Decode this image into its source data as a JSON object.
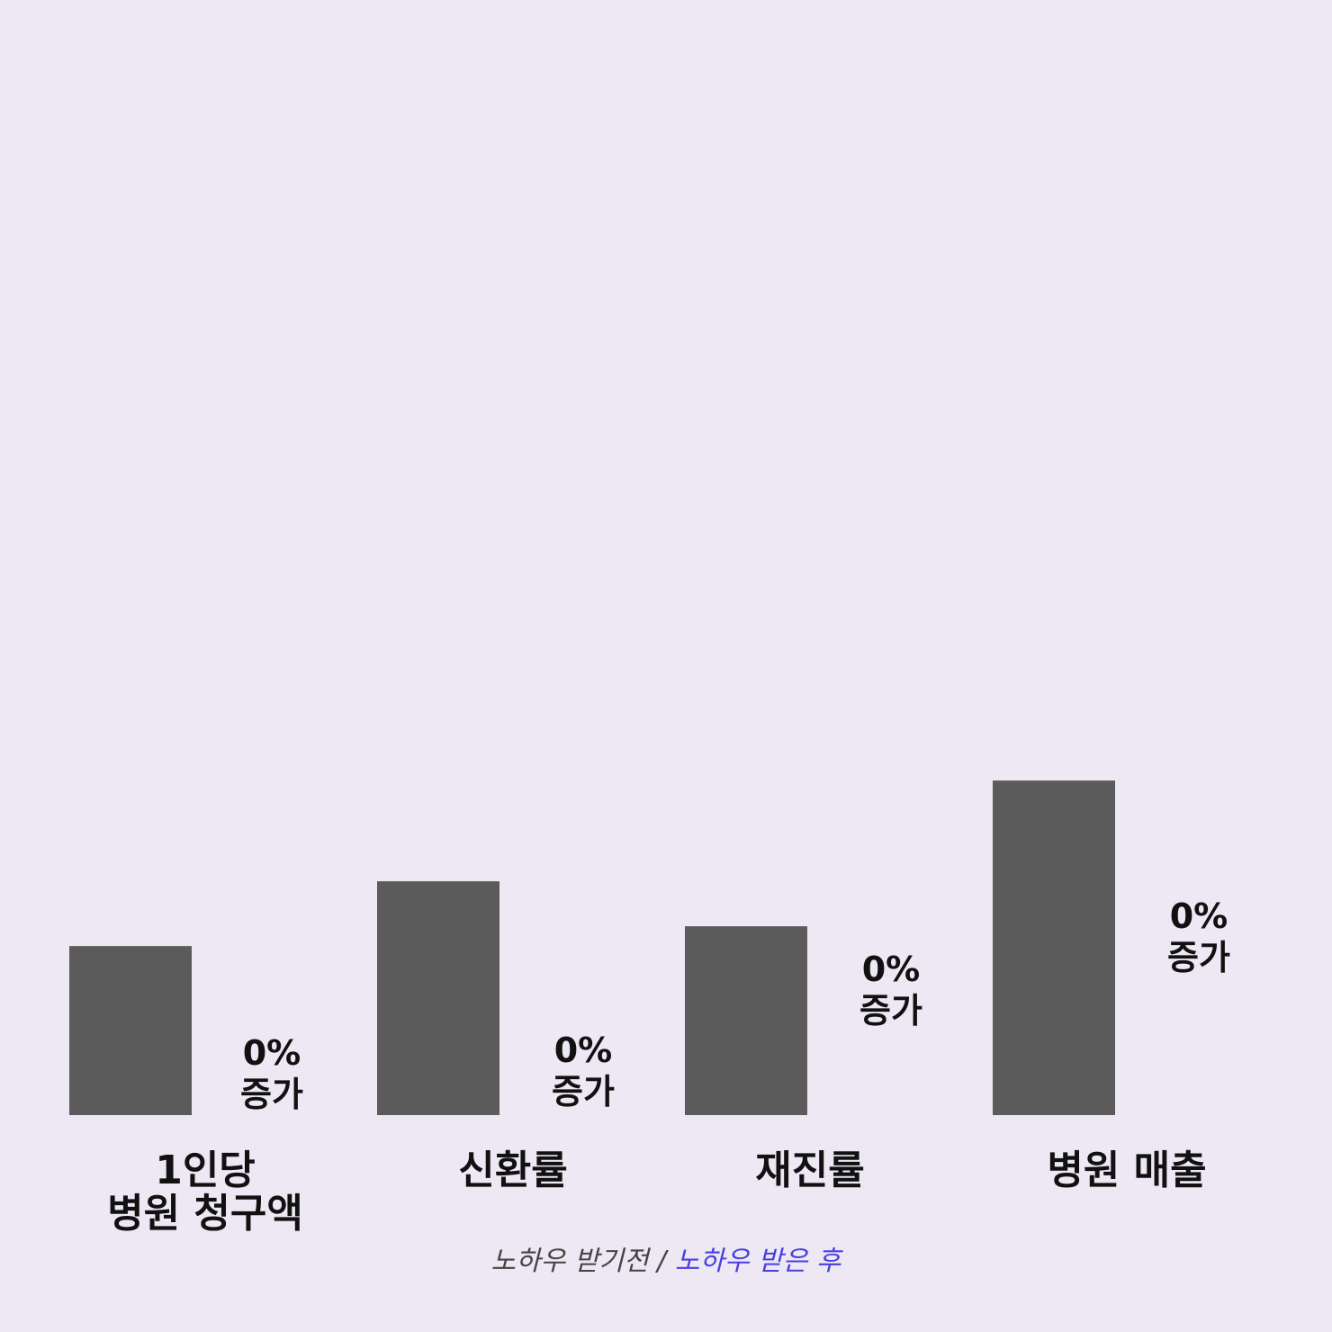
{
  "chart_data": {
    "type": "bar",
    "title": "",
    "xlabel": "",
    "ylabel": "",
    "categories": [
      [
        "1인당",
        "병원 청구액"
      ],
      [
        "신환률"
      ],
      [
        "재진률"
      ],
      [
        "병원 매출"
      ]
    ],
    "series": [
      {
        "name": "노하우 받기전",
        "values": [
          188,
          260,
          210,
          372
        ],
        "color": "#5b5b5b"
      },
      {
        "name": "노하우 받은 후",
        "values": [
          0,
          0,
          0,
          0
        ],
        "color": "#4a3fe0"
      }
    ],
    "change_labels": [
      [
        "0%",
        "증가"
      ],
      [
        "0%",
        "증가"
      ],
      [
        "0%",
        "증가"
      ],
      [
        "0%",
        "증가"
      ]
    ],
    "ylim": [
      0,
      1240
    ],
    "grid": false,
    "legend_position": "bottom-center"
  },
  "legend": {
    "before": "노하우 받기전",
    "separator": " / ",
    "after": "노하우 받은 후"
  }
}
